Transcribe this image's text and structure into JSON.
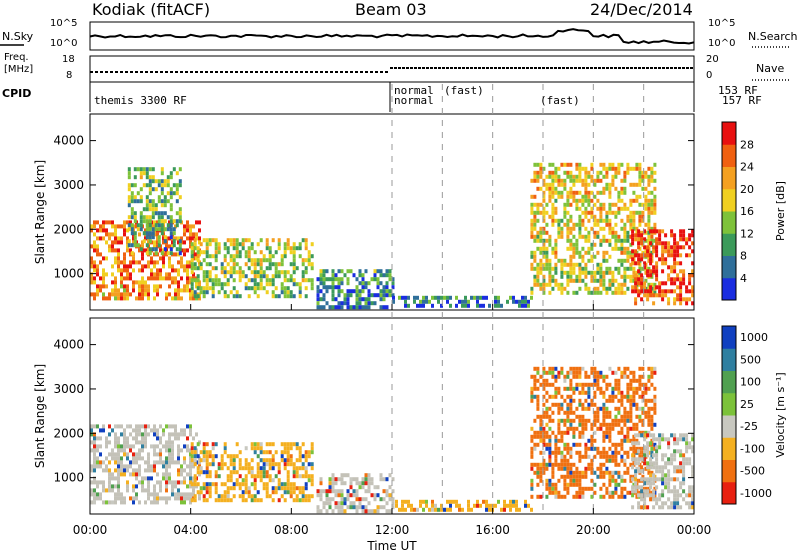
{
  "header": {
    "station": "Kodiak (fitACF)",
    "beam": "Beam 03",
    "date": "24/Dec/2014"
  },
  "status_panels": {
    "nsky_label": "N.Sky",
    "nsearch_label": "N.Search",
    "freq_label_line1": "Freq.",
    "freq_label_line2": "[MHz]",
    "nave_label": "Nave",
    "cpid_label": "CPID",
    "left_top_tick": "10^5",
    "left_bottom_tick": "10^0",
    "right_top_tick": "10^5",
    "right_bottom_tick": "10^0",
    "freq_ticks": [
      "18",
      "8"
    ],
    "nave_ticks": [
      "20",
      "0"
    ],
    "cpid_entries": [
      "themis 3300 RF",
      "normal",
      "normal",
      "(fast)",
      "(fast)",
      "153 RF",
      "157 RF"
    ]
  },
  "chart_data": [
    {
      "type": "heatmap",
      "title": "",
      "xlabel": "",
      "ylabel": "Slant Range [km]",
      "xlim_hours": [
        0,
        24
      ],
      "ylim_km": [
        180,
        4600
      ],
      "y_ticks": [
        1000,
        2000,
        3000,
        4000
      ],
      "colorbar": {
        "label": "Power [dB]",
        "ticks": [
          4,
          8,
          12,
          16,
          20,
          24,
          28
        ],
        "colors": [
          "#1a2de0",
          "#2f6f9a",
          "#3b9a5a",
          "#7ec23a",
          "#f0d020",
          "#f4a020",
          "#f06010",
          "#e81010"
        ]
      },
      "echo_regions": [
        {
          "start_hour": 0.0,
          "end_hour": 4.3,
          "range_km": [
            400,
            2200
          ],
          "power_db": 24
        },
        {
          "start_hour": 1.5,
          "end_hour": 3.6,
          "range_km": [
            1500,
            3400
          ],
          "power_db": 12
        },
        {
          "start_hour": 4.0,
          "end_hour": 8.8,
          "range_km": [
            500,
            1800
          ],
          "power_db": 14
        },
        {
          "start_hour": 9.0,
          "end_hour": 12.0,
          "range_km": [
            250,
            1100
          ],
          "power_db": 8
        },
        {
          "start_hour": 12.0,
          "end_hour": 17.5,
          "range_km": [
            250,
            500
          ],
          "power_db": 6
        },
        {
          "start_hour": 17.5,
          "end_hour": 22.5,
          "range_km": [
            600,
            3500
          ],
          "power_db": 18
        },
        {
          "start_hour": 21.5,
          "end_hour": 24.0,
          "range_km": [
            300,
            2000
          ],
          "power_db": 28
        }
      ]
    },
    {
      "type": "heatmap",
      "title": "",
      "xlabel": "Time UT",
      "ylabel": "Slant Range [km]",
      "xlim_hours": [
        0,
        24
      ],
      "ylim_km": [
        180,
        4600
      ],
      "y_ticks": [
        1000,
        2000,
        3000,
        4000
      ],
      "x_tick_labels": [
        "00:00",
        "04:00",
        "08:00",
        "12:00",
        "16:00",
        "20:00",
        "00:00"
      ],
      "x_tick_hours": [
        0,
        4,
        8,
        12,
        16,
        20,
        24
      ],
      "colorbar": {
        "label": "Velocity [m s^-1]",
        "ticks": [
          "1000",
          "500",
          "100",
          "25",
          "-25",
          "-100",
          "-500",
          "-1000"
        ],
        "colors": [
          "#1040c0",
          "#2f7fa0",
          "#50a050",
          "#7cc23a",
          "#c8c8c0",
          "#f4b020",
          "#f07010",
          "#e82010"
        ]
      },
      "echo_regions": [
        {
          "start_hour": 0.0,
          "end_hour": 4.3,
          "range_km": [
            400,
            2200
          ],
          "velocity_class": "ground-scatter"
        },
        {
          "start_hour": 4.0,
          "end_hour": 8.8,
          "range_km": [
            500,
            1800
          ],
          "velocity_class": "-100"
        },
        {
          "start_hour": 9.0,
          "end_hour": 12.0,
          "range_km": [
            250,
            1100
          ],
          "velocity_class": "ground-scatter"
        },
        {
          "start_hour": 12.0,
          "end_hour": 17.5,
          "range_km": [
            250,
            500
          ],
          "velocity_class": "-100"
        },
        {
          "start_hour": 17.5,
          "end_hour": 22.5,
          "range_km": [
            600,
            3500
          ],
          "velocity_class": "-500"
        },
        {
          "start_hour": 21.5,
          "end_hour": 24.0,
          "range_km": [
            300,
            2000
          ],
          "velocity_class": "ground-scatter"
        }
      ]
    }
  ],
  "dashed_markers_hours": [
    12.0,
    14.0,
    16.0,
    18.0,
    20.0,
    22.0
  ]
}
